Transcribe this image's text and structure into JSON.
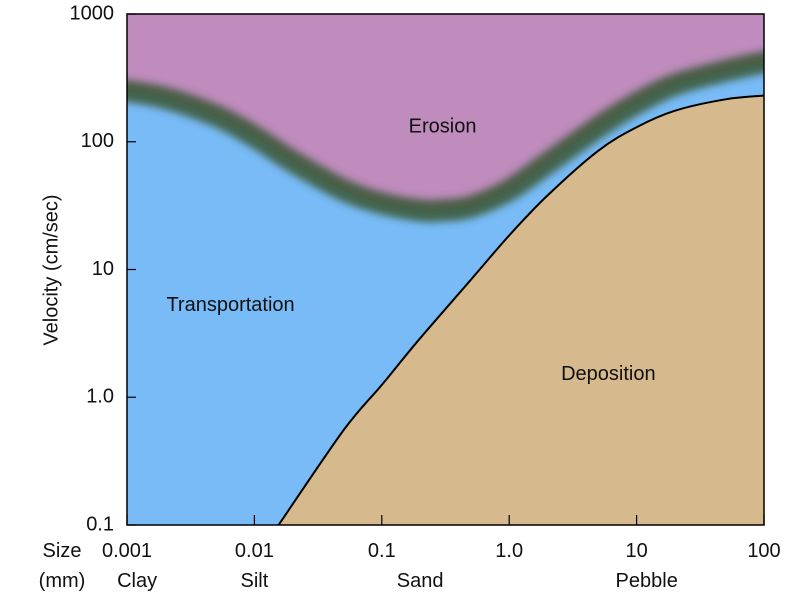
{
  "chart_data": {
    "type": "area",
    "title": "",
    "xlabel": "",
    "ylabel": "Velocity (cm/sec)",
    "x_scale": "log",
    "y_scale": "log",
    "xlim": [
      0.001,
      100
    ],
    "ylim": [
      0.1,
      1000
    ],
    "x_ticks": [
      {
        "value": 0.001,
        "label": "0.001"
      },
      {
        "value": 0.01,
        "label": "0.01"
      },
      {
        "value": 0.1,
        "label": "0.1"
      },
      {
        "value": 1,
        "label": "1.0"
      },
      {
        "value": 10,
        "label": "10"
      },
      {
        "value": 100,
        "label": "100"
      }
    ],
    "y_ticks": [
      {
        "value": 0.1,
        "label": "0.1"
      },
      {
        "value": 1,
        "label": "1.0"
      },
      {
        "value": 10,
        "label": "10"
      },
      {
        "value": 100,
        "label": "100"
      },
      {
        "value": 1000,
        "label": "1000"
      }
    ],
    "size_axis": {
      "line1": "Size",
      "line2": "(mm)"
    },
    "size_categories": [
      {
        "label": "Clay",
        "x": 0.0012
      },
      {
        "label": "Silt",
        "x": 0.01
      },
      {
        "label": "Sand",
        "x": 0.2
      },
      {
        "label": "Pebble",
        "x": 12
      }
    ],
    "boundaries": [
      {
        "id": "erosion-transport",
        "x": [
          0.001,
          0.002,
          0.005,
          0.01,
          0.02,
          0.05,
          0.1,
          0.2,
          0.3,
          0.5,
          1,
          2,
          5,
          10,
          20,
          50,
          100
        ],
        "y": [
          250,
          220,
          160,
          110,
          70,
          42,
          33,
          29,
          29,
          31,
          42,
          68,
          130,
          200,
          280,
          360,
          420
        ]
      },
      {
        "id": "transport-deposition",
        "x": [
          0.0155,
          0.05,
          0.1,
          0.2,
          0.5,
          1,
          2,
          5,
          10,
          20,
          50,
          100
        ],
        "y": [
          0.1,
          0.55,
          1.25,
          2.9,
          8.3,
          18.5,
          38,
          85,
          130,
          175,
          215,
          230
        ]
      }
    ],
    "regions": [
      {
        "name": "Erosion",
        "color": "#bf8cbd",
        "label_x": 0.3,
        "label_y": 130
      },
      {
        "name": "Transportation",
        "color": "#78bbf6",
        "label_x": 0.0065,
        "label_y": 5.2
      },
      {
        "name": "Deposition",
        "color": "#d6b98c",
        "label_x": 6,
        "label_y": 1.5
      }
    ],
    "band_color": "#3e5a3a",
    "grid": false,
    "legend": "none"
  }
}
